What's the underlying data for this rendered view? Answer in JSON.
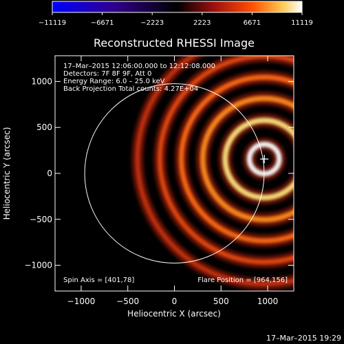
{
  "chart_data": {
    "type": "heatmap",
    "title": "Reconstructed RHESSI Image",
    "xlabel": "Heliocentric X (arcsec)",
    "ylabel": "Heliocentric Y (arcsec)",
    "xlim": [
      -1280,
      1280
    ],
    "ylim": [
      -1280,
      1280
    ],
    "x_ticks": [
      -1000,
      -500,
      0,
      500,
      1000
    ],
    "y_ticks": [
      -1000,
      -500,
      0,
      500,
      1000
    ],
    "x_tick_labels": [
      "−1000",
      "−500",
      "0",
      "500",
      "1000"
    ],
    "y_tick_labels": [
      "−1000",
      "−500",
      "0",
      "500",
      "1000"
    ],
    "colorbar": {
      "range": [
        -11119,
        11119
      ],
      "ticks": [
        -11119,
        -6671,
        -2223,
        2223,
        6671,
        11119
      ],
      "tick_labels": [
        "−11119",
        "−6671",
        "−2223",
        "2223",
        "6671",
        "11119"
      ]
    },
    "annotations": [
      "17–Mar–2015 12:06:00.000 to 12:12:08.000",
      "Detectors: 7F 8F 9F, Att 0",
      "Energy Range: 6.0 – 25.0 keV",
      "Back Projection    Total counts: 4.27E+04"
    ],
    "spin_axis_label": "Spin Axis = [401,78]",
    "flare_position_label": "Flare Position = [964,156]",
    "spin_axis": [
      401,
      78
    ],
    "flare_position": [
      964,
      156
    ],
    "solar_disk": {
      "center": [
        0,
        0
      ],
      "radius": 962
    },
    "ring_peaks_arcsec": [
      160,
      420,
      660,
      890,
      1120,
      1360
    ]
  },
  "timestamp": "17–Mar–2015 19:29"
}
